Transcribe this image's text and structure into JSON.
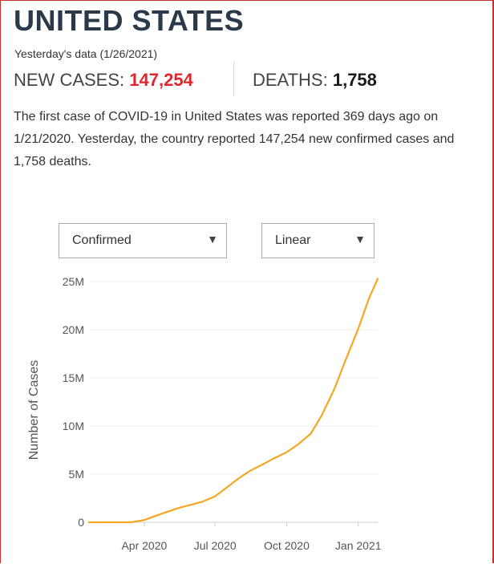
{
  "header": {
    "title": "UNITED STATES",
    "subtitle": "Yesterday's data (1/26/2021)"
  },
  "stats": {
    "new_cases_label": "NEW CASES:",
    "new_cases_value": "147,254",
    "deaths_label": "DEATHS:",
    "deaths_value": "1,758",
    "new_cases_color": "#e0272e"
  },
  "description": "The first case of COVID-19 in United States was reported 369 days ago on 1/21/2020. Yesterday, the country reported 147,254 new confirmed cases and 1,758 deaths.",
  "controls": {
    "type_select": {
      "selected": "Confirmed",
      "arrow_icon": "triangle-down-icon"
    },
    "scale_select": {
      "selected": "Linear",
      "arrow_icon": "triangle-down-icon"
    }
  },
  "chart_data": {
    "type": "line",
    "ylabel": "Number of Cases",
    "xlabel": "",
    "y_ticks": [
      0,
      5000000,
      10000000,
      15000000,
      20000000,
      25000000
    ],
    "y_tick_labels": [
      "0",
      "5M",
      "10M",
      "15M",
      "20M",
      "25M"
    ],
    "x_ticks": [
      "2020-04-01",
      "2020-07-01",
      "2020-10-01",
      "2021-01-01"
    ],
    "x_tick_labels": [
      "Apr 2020",
      "Jul 2020",
      "Oct 2020",
      "Jan 2021"
    ],
    "x_range": [
      "2020-01-21",
      "2021-01-26"
    ],
    "ylim": [
      0,
      25000000
    ],
    "grid": "horizontal",
    "line_color": "#f5a623",
    "series": [
      {
        "x": [
          "2020-01-21",
          "2020-03-01",
          "2020-03-15",
          "2020-04-01",
          "2020-04-15",
          "2020-05-01",
          "2020-05-15",
          "2020-06-01",
          "2020-06-15",
          "2020-07-01",
          "2020-07-15",
          "2020-08-01",
          "2020-08-15",
          "2020-09-01",
          "2020-09-15",
          "2020-10-01",
          "2020-10-15",
          "2020-11-01",
          "2020-11-15",
          "2020-12-01",
          "2020-12-15",
          "2021-01-01",
          "2021-01-15",
          "2021-01-26"
        ],
        "values": [
          0,
          30,
          3500,
          230000,
          650000,
          1100000,
          1480000,
          1840000,
          2150000,
          2700000,
          3550000,
          4600000,
          5350000,
          6050000,
          6650000,
          7280000,
          8050000,
          9200000,
          11100000,
          13800000,
          16700000,
          20100000,
          23300000,
          25300000
        ]
      }
    ]
  }
}
